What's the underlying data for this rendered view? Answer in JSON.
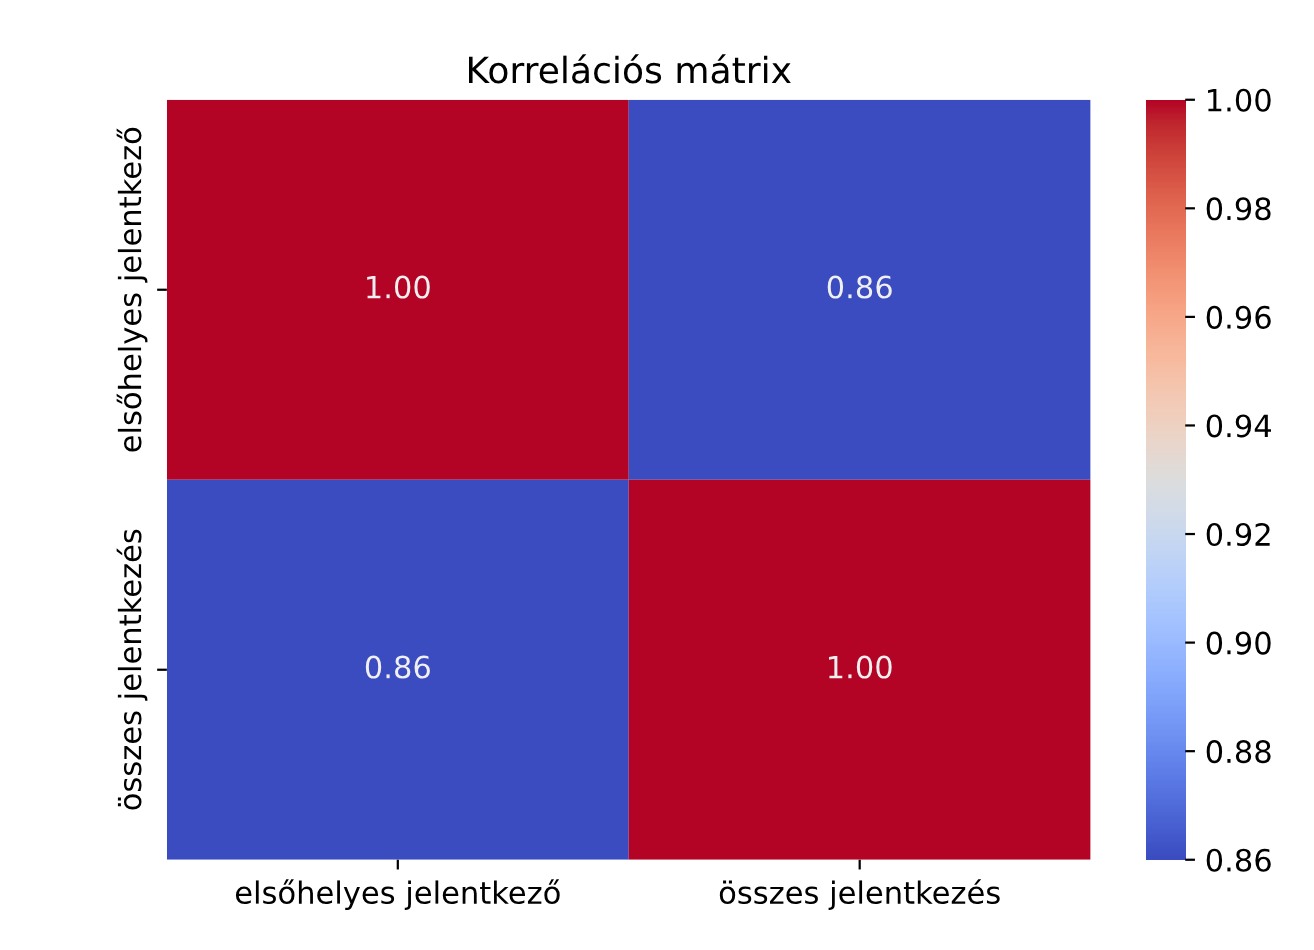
{
  "chart_data": {
    "type": "heatmap",
    "title": "Korrelációs mátrix",
    "categories": [
      "elsőhelyes jelentkező",
      "összes jelentkezés"
    ],
    "y_categories": [
      "elsőhelyes jelentkező",
      "összes jelentkezés"
    ],
    "cells": [
      [
        1.0,
        0.86
      ],
      [
        0.86,
        1.0
      ]
    ],
    "cell_labels": [
      [
        "1.00",
        "0.86"
      ],
      [
        "0.86",
        "1.00"
      ]
    ],
    "clim": [
      0.86,
      1.0
    ],
    "cticks": [
      0.86,
      0.88,
      {
        "value": 0.9,
        "label": "0.90"
      },
      0.92,
      0.94,
      0.96,
      0.98,
      {
        "value": 1,
        "label": "1.00"
      }
    ]
  }
}
